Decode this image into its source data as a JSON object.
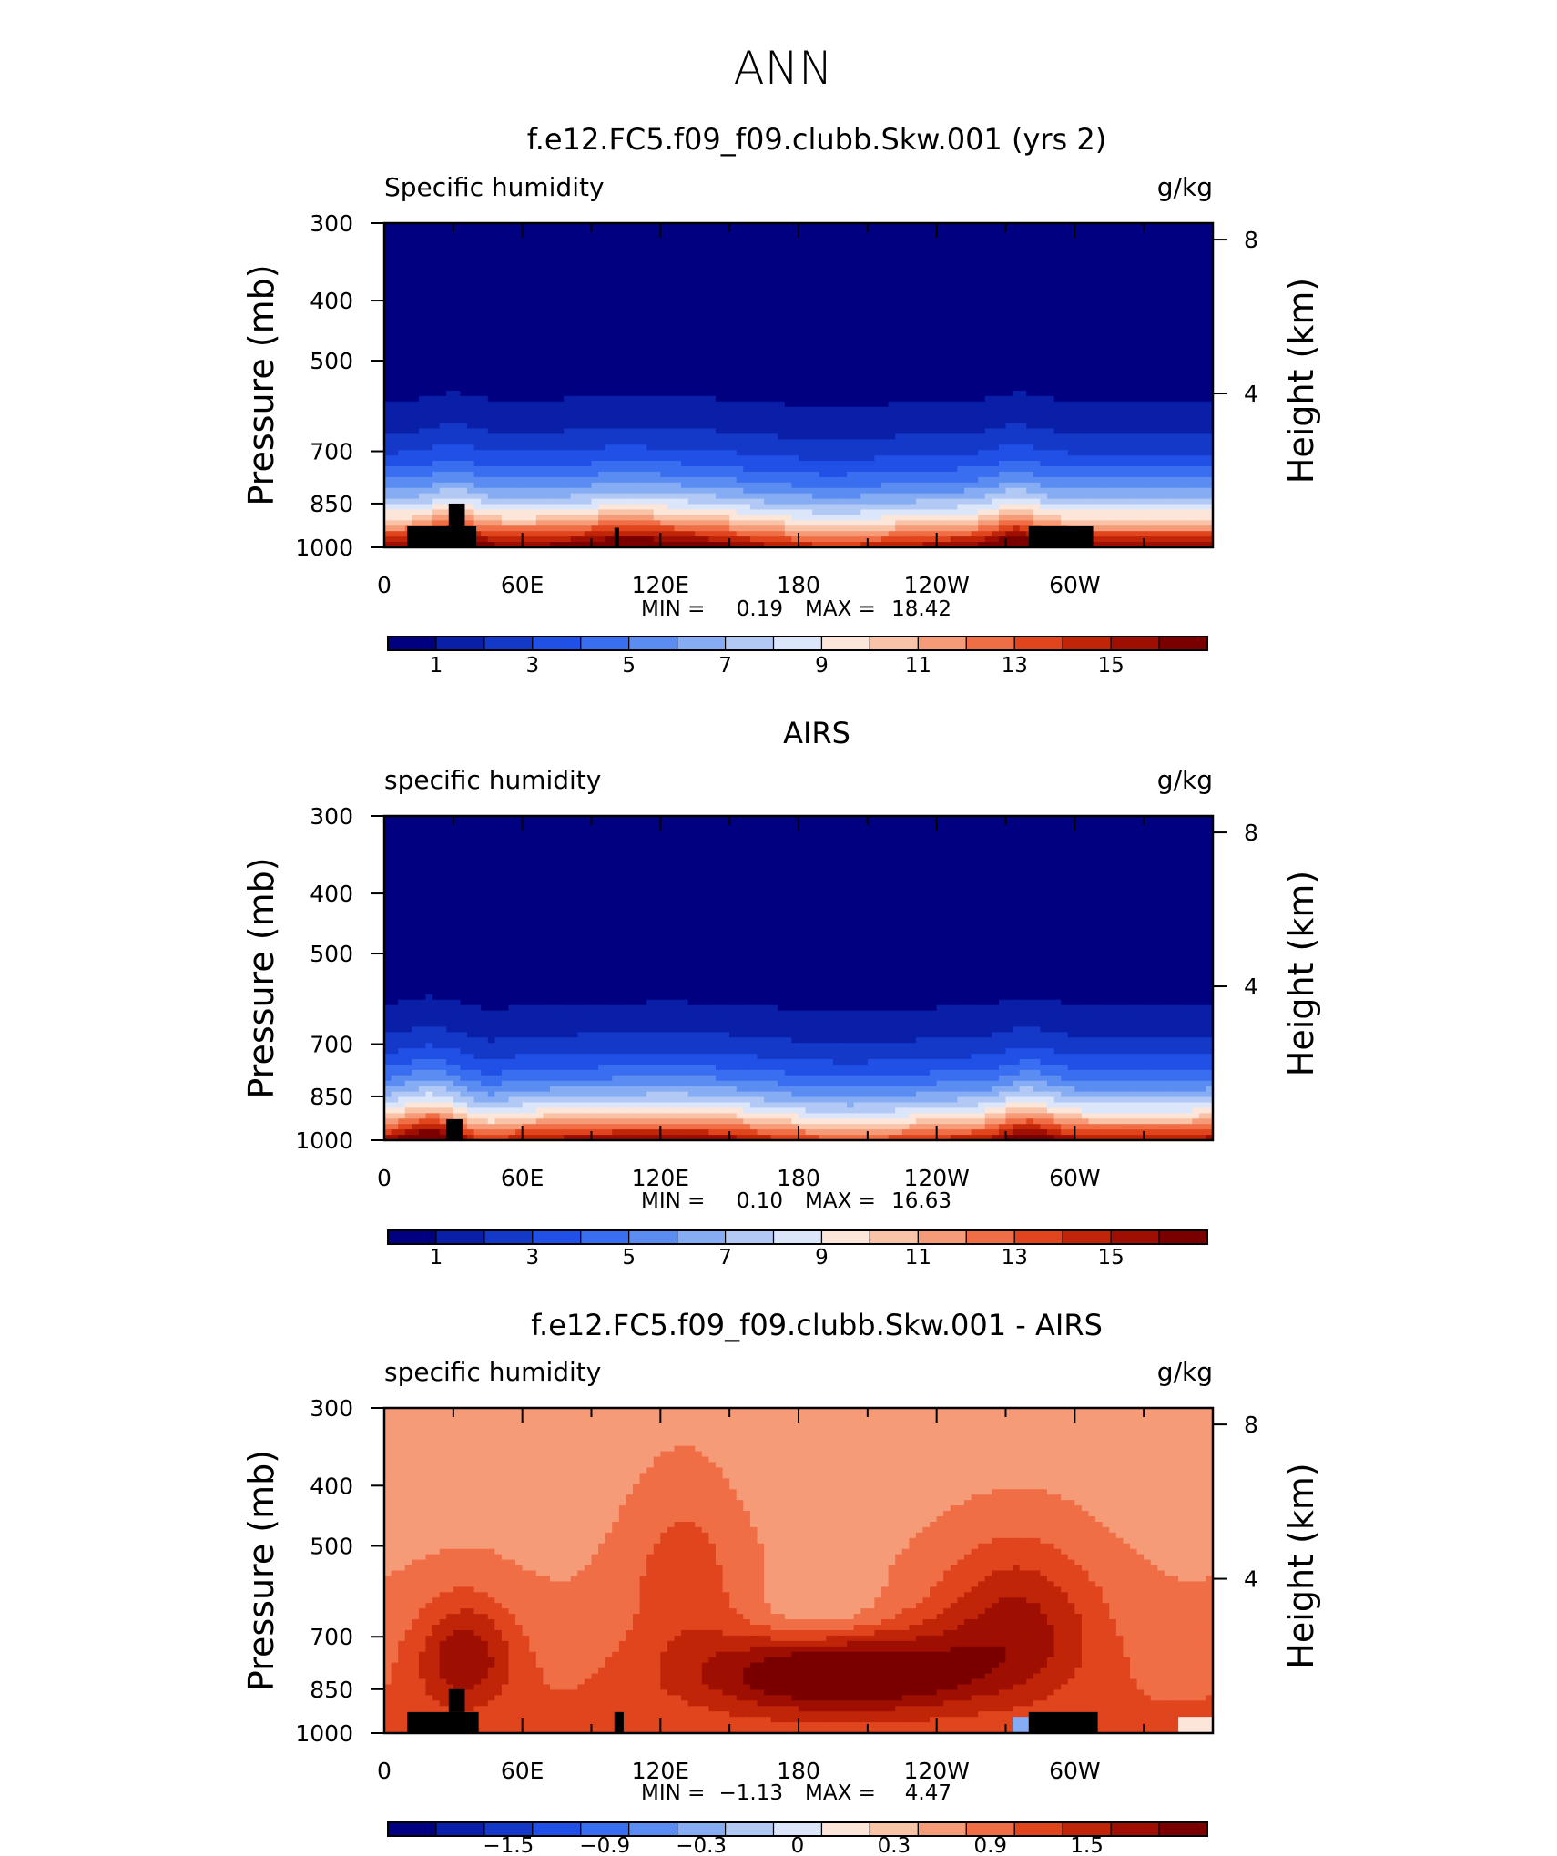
{
  "page_title": "ANN",
  "colors": {
    "blue_red_palette": [
      "#000080",
      "#0a1fa8",
      "#1438c8",
      "#2050e6",
      "#3a6ef0",
      "#5a8cf2",
      "#86acf4",
      "#b2c9f6",
      "#dbe6fa",
      "#fce6da",
      "#f9c3a8",
      "#f69b78",
      "#f06e46",
      "#e0451e",
      "#c02508",
      "#9e0f02",
      "#7a0000"
    ]
  },
  "chart_data": [
    {
      "type": "heatmap",
      "title": "f.e12.FC5.f09_f09.clubb.Skw.001 (yrs 2)",
      "left_label": "Specific humidity",
      "right_label": "g/kg",
      "ylabel": "Pressure (mb)",
      "ylabel_right": "Height (km)",
      "x_ticks": [
        "0",
        "60E",
        "120E",
        "180",
        "120W",
        "60W"
      ],
      "y_ticks": [
        "300",
        "400",
        "500",
        "700",
        "850",
        "1000"
      ],
      "y2_ticks": [
        "8",
        "4"
      ],
      "stats": {
        "min_label": "MIN =",
        "min": "0.19",
        "max_label": "MAX =",
        "max": "18.42"
      },
      "colorbar_labels": [
        "1",
        "3",
        "5",
        "7",
        "9",
        "11",
        "13",
        "15"
      ],
      "field": "model",
      "x": [
        0,
        15,
        25,
        30,
        35,
        40,
        60,
        80,
        100,
        110,
        120,
        135,
        150,
        165,
        180,
        195,
        210,
        225,
        240,
        255,
        270,
        280,
        285,
        290,
        300,
        315,
        330,
        345,
        360
      ],
      "levels": [
        0,
        1,
        2,
        3,
        4,
        5,
        6,
        7,
        8,
        9,
        10,
        11,
        12,
        13,
        14,
        15
      ],
      "land_boxes": [
        [
          10,
          40,
          925,
          1000
        ],
        [
          28,
          35,
          850,
          925
        ],
        [
          100,
          102,
          930,
          1000
        ],
        [
          280,
          308,
          925,
          1000
        ]
      ]
    },
    {
      "type": "heatmap",
      "title": "AIRS",
      "left_label": "specific humidity",
      "right_label": "g/kg",
      "ylabel": "Pressure (mb)",
      "ylabel_right": "Height (km)",
      "x_ticks": [
        "0",
        "60E",
        "120E",
        "180",
        "120W",
        "60W"
      ],
      "y_ticks": [
        "300",
        "400",
        "500",
        "700",
        "850",
        "1000"
      ],
      "y2_ticks": [
        "8",
        "4"
      ],
      "stats": {
        "min_label": "MIN =",
        "min": "0.10",
        "max_label": "MAX =",
        "max": "16.63"
      },
      "colorbar_labels": [
        "1",
        "3",
        "5",
        "7",
        "9",
        "11",
        "13",
        "15"
      ],
      "field": "obs",
      "land_boxes": [
        [
          27,
          34,
          925,
          1000
        ]
      ]
    },
    {
      "type": "heatmap",
      "title": "f.e12.FC5.f09_f09.clubb.Skw.001 - AIRS",
      "left_label": "specific humidity",
      "right_label": "g/kg",
      "ylabel": "Pressure (mb)",
      "ylabel_right": "Height (km)",
      "x_ticks": [
        "0",
        "60E",
        "120E",
        "180",
        "120W",
        "60W"
      ],
      "y_ticks": [
        "300",
        "400",
        "500",
        "700",
        "850",
        "1000"
      ],
      "y2_ticks": [
        "8",
        "4"
      ],
      "stats": {
        "min_label": "MIN =",
        "min": "−1.13",
        "max_label": "MAX =",
        "max": "4.47"
      },
      "colorbar_labels": [
        "−1.5",
        "−0.9",
        "−0.3",
        "0",
        "0.3",
        "0.9",
        "1.5"
      ],
      "field": "diff",
      "land_boxes": [
        [
          10,
          41,
          925,
          1000
        ],
        [
          28,
          35,
          850,
          925
        ],
        [
          100,
          104,
          925,
          1000
        ],
        [
          280,
          310,
          925,
          1000
        ]
      ]
    }
  ]
}
